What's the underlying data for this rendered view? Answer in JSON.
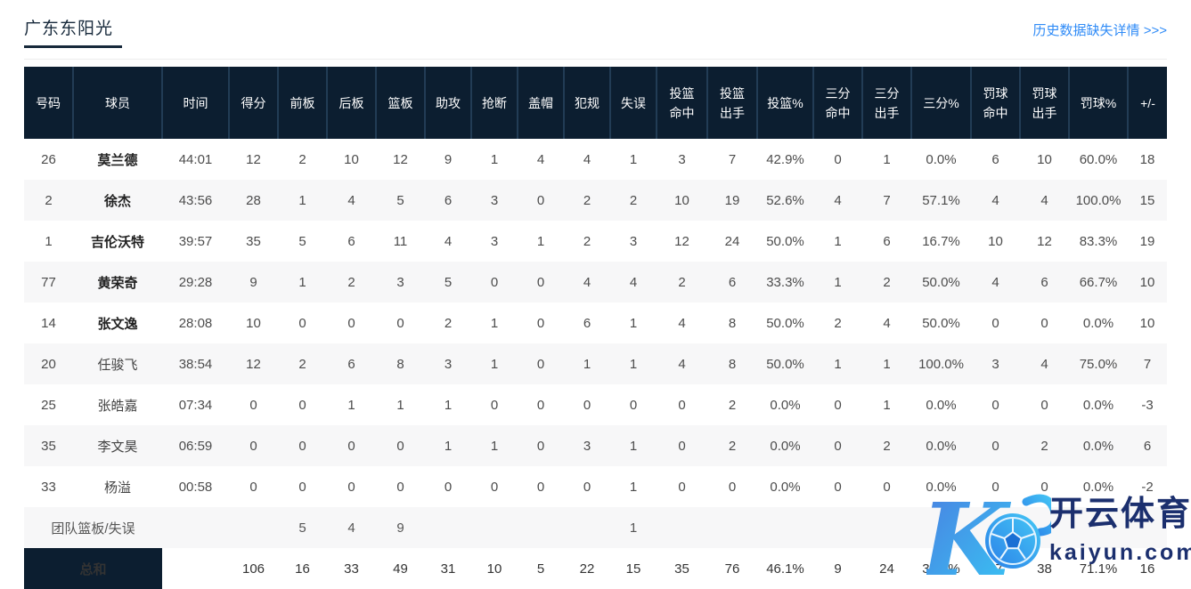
{
  "header": {
    "title": "广东东阳光",
    "link_label": "历史数据缺失详情 >>>"
  },
  "colors": {
    "table_header_bg": "#0c1e30",
    "table_header_divider": "#223c55",
    "row_alt_bg": "#f7f7f8",
    "link_blue": "#2f8bf7",
    "title_navy": "#17293b",
    "watermark_navy": "#1b2f6e",
    "watermark_gradient": [
      "#4a7de0",
      "#38c6f4"
    ]
  },
  "table": {
    "columns": [
      "号码",
      "球员",
      "时间",
      "得分",
      "前板",
      "后板",
      "篮板",
      "助攻",
      "抢断",
      "盖帽",
      "犯规",
      "失误",
      "投篮命中",
      "投篮出手",
      "投篮%",
      "三分命中",
      "三分出手",
      "三分%",
      "罚球命中",
      "罚球出手",
      "罚球%",
      "+/-"
    ],
    "rows": [
      {
        "bold": true,
        "cells": [
          "26",
          "莫兰德",
          "44:01",
          "12",
          "2",
          "10",
          "12",
          "9",
          "1",
          "4",
          "4",
          "1",
          "3",
          "7",
          "42.9%",
          "0",
          "1",
          "0.0%",
          "6",
          "10",
          "60.0%",
          "18"
        ]
      },
      {
        "bold": true,
        "cells": [
          "2",
          "徐杰",
          "43:56",
          "28",
          "1",
          "4",
          "5",
          "6",
          "3",
          "0",
          "2",
          "2",
          "10",
          "19",
          "52.6%",
          "4",
          "7",
          "57.1%",
          "4",
          "4",
          "100.0%",
          "15"
        ]
      },
      {
        "bold": true,
        "cells": [
          "1",
          "吉伦沃特",
          "39:57",
          "35",
          "5",
          "6",
          "11",
          "4",
          "3",
          "1",
          "2",
          "3",
          "12",
          "24",
          "50.0%",
          "1",
          "6",
          "16.7%",
          "10",
          "12",
          "83.3%",
          "19"
        ]
      },
      {
        "bold": true,
        "cells": [
          "77",
          "黄荣奇",
          "29:28",
          "9",
          "1",
          "2",
          "3",
          "5",
          "0",
          "0",
          "4",
          "4",
          "2",
          "6",
          "33.3%",
          "1",
          "2",
          "50.0%",
          "4",
          "6",
          "66.7%",
          "10"
        ]
      },
      {
        "bold": true,
        "cells": [
          "14",
          "张文逸",
          "28:08",
          "10",
          "0",
          "0",
          "0",
          "2",
          "1",
          "0",
          "6",
          "1",
          "4",
          "8",
          "50.0%",
          "2",
          "4",
          "50.0%",
          "0",
          "0",
          "0.0%",
          "10"
        ]
      },
      {
        "bold": false,
        "cells": [
          "20",
          "任骏飞",
          "38:54",
          "12",
          "2",
          "6",
          "8",
          "3",
          "1",
          "0",
          "1",
          "1",
          "4",
          "8",
          "50.0%",
          "1",
          "1",
          "100.0%",
          "3",
          "4",
          "75.0%",
          "7"
        ]
      },
      {
        "bold": false,
        "cells": [
          "25",
          "张皓嘉",
          "07:34",
          "0",
          "0",
          "1",
          "1",
          "1",
          "0",
          "0",
          "0",
          "0",
          "0",
          "2",
          "0.0%",
          "0",
          "1",
          "0.0%",
          "0",
          "0",
          "0.0%",
          "-3"
        ]
      },
      {
        "bold": false,
        "cells": [
          "35",
          "李文昊",
          "06:59",
          "0",
          "0",
          "0",
          "0",
          "1",
          "1",
          "0",
          "3",
          "1",
          "0",
          "2",
          "0.0%",
          "0",
          "2",
          "0.0%",
          "0",
          "2",
          "0.0%",
          "6"
        ]
      },
      {
        "bold": false,
        "cells": [
          "33",
          "杨溢",
          "00:58",
          "0",
          "0",
          "0",
          "0",
          "0",
          "0",
          "0",
          "0",
          "1",
          "0",
          "0",
          "0.0%",
          "0",
          "0",
          "0.0%",
          "0",
          "0",
          "0.0%",
          "-2"
        ]
      }
    ],
    "team_row": {
      "label": "团队篮板/失误",
      "cells": [
        "",
        "",
        "5",
        "4",
        "9",
        "",
        "",
        "",
        "",
        "1",
        "",
        "",
        "",
        "",
        "",
        "",
        "",
        "",
        "",
        ""
      ]
    },
    "total_row": {
      "label": "总和",
      "cells": [
        "",
        "106",
        "16",
        "33",
        "49",
        "31",
        "10",
        "5",
        "22",
        "15",
        "35",
        "76",
        "46.1%",
        "9",
        "24",
        "37.5%",
        "27",
        "38",
        "71.1%",
        "16"
      ]
    }
  },
  "watermark": {
    "brand_cn": "开云体育",
    "brand_en": "kaiyun.com"
  }
}
